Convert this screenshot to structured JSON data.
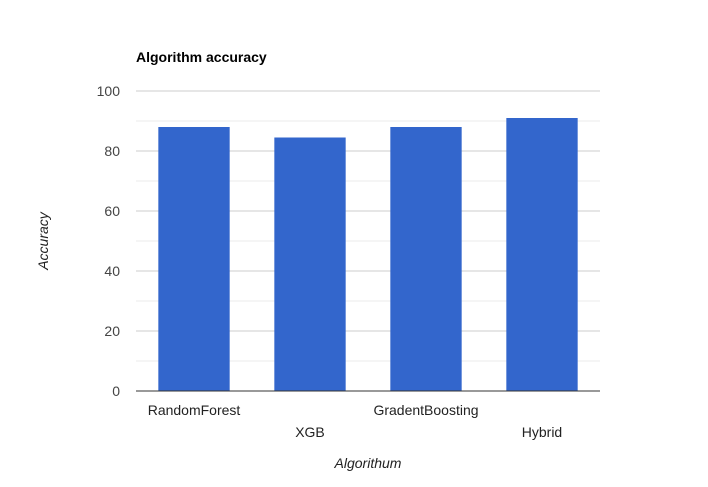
{
  "chart_data": {
    "type": "bar",
    "title": "Algorithm accuracy",
    "xlabel": "Algorithum",
    "ylabel": "Accuracy",
    "categories": [
      "RandomForest",
      "XGB",
      "GradentBoosting",
      "Hybrid"
    ],
    "values": [
      88,
      84.5,
      88,
      91
    ],
    "ylim": [
      0,
      100
    ],
    "yticks": [
      "0",
      "20",
      "40",
      "60",
      "80",
      "100"
    ],
    "grid": true,
    "legend": "none",
    "colors": {
      "bar": "#3366cc",
      "gridline": "#cccccc",
      "minor_gridline": "#ebebeb",
      "baseline": "#333333",
      "title": "#000000",
      "tick_label": "#444444",
      "axis_title": "#222222"
    }
  }
}
